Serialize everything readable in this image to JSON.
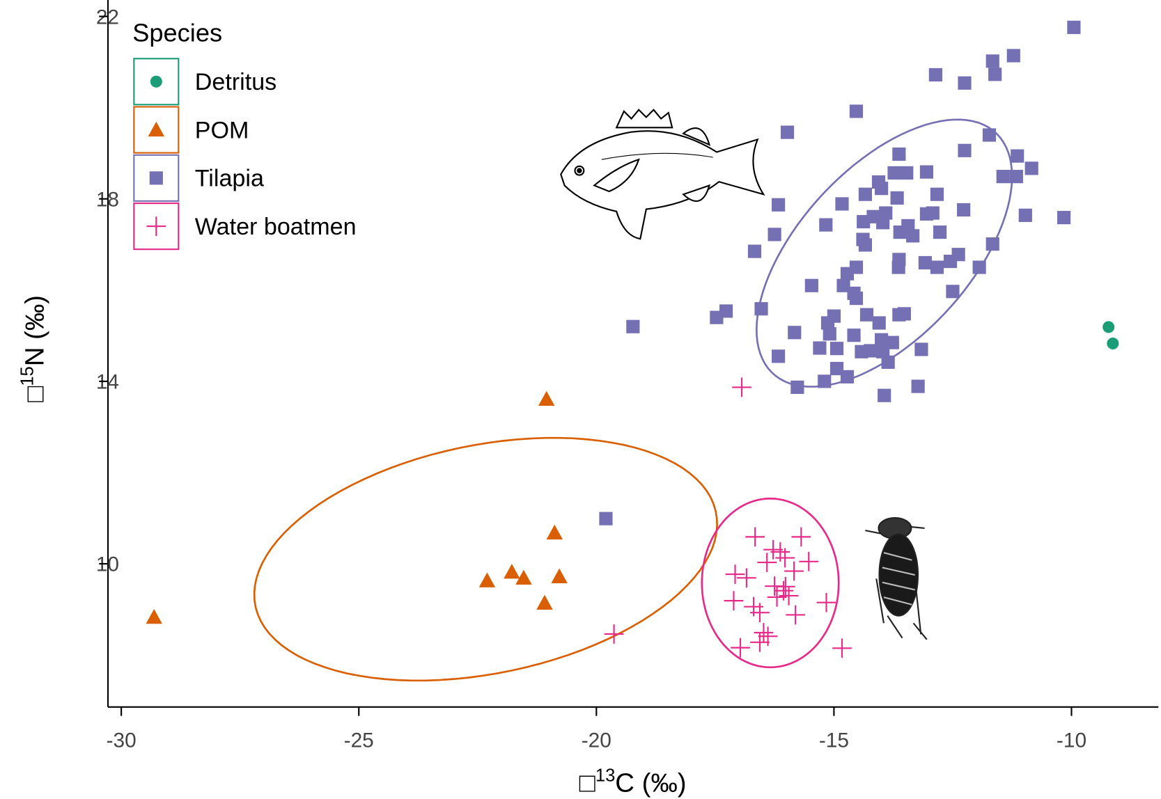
{
  "chart_data": {
    "type": "scatter",
    "xlabel": [
      "□",
      "13",
      "C (‰)"
    ],
    "ylabel": [
      "□",
      "15",
      "N (‰)"
    ],
    "xlim": [
      -30.28,
      -8.17
    ],
    "ylim": [
      6.86,
      22.36
    ],
    "xticks": [
      -30,
      -25,
      -20,
      -15,
      -10
    ],
    "yticks": [
      10,
      14,
      18,
      22
    ],
    "legend_title": "Species",
    "legend": "upper left",
    "series": [
      {
        "name": "Detritus",
        "color": "#1b9e77",
        "marker": "circle",
        "x": [
          -9.22,
          -9.13
        ],
        "y": [
          15.19,
          14.83
        ]
      },
      {
        "name": "POM",
        "color": "#d95f02",
        "marker": "triangle",
        "x": [
          -29.31,
          -21.05,
          -20.88,
          -20.78,
          -22.3,
          -21.78,
          -21.53,
          -21.09
        ],
        "y": [
          8.83,
          13.61,
          10.68,
          9.72,
          9.63,
          9.82,
          9.69,
          9.14
        ],
        "ellipse": {
          "center": [
            -22.33,
            10.1
          ],
          "axis_a": [
            4.84,
            1.06
          ],
          "axis_b": [
            -0.55,
            2.44
          ]
        }
      },
      {
        "name": "Tilapia",
        "color": "#7570b3",
        "marker": "square",
        "x": [
          -9.95,
          -11.22,
          -11.66,
          -11.61,
          -12.86,
          -12.25,
          -14.53,
          -15.98,
          -11.73,
          -12.25,
          -11.14,
          -13.63,
          -10.84,
          -11.44,
          -11.16,
          -13.05,
          -14.06,
          -13.73,
          -13.47,
          -14.0,
          -14.34,
          -13.67,
          -12.83,
          -16.17,
          -14.83,
          -12.27,
          -13.91,
          -14.17,
          -13.05,
          -12.92,
          -10.97,
          -10.16,
          -15.17,
          -14.38,
          -13.97,
          -13.44,
          -13.61,
          -13.34,
          -12.77,
          -16.25,
          -14.39,
          -14.34,
          -11.66,
          -16.67,
          -13.63,
          -12.38,
          -12.55,
          -13.08,
          -12.83,
          -14.53,
          -14.72,
          -13.64,
          -11.94,
          -15.47,
          -14.8,
          -14.58,
          -12.5,
          -14.53,
          -17.27,
          -17.47,
          -16.53,
          -19.23,
          -15.0,
          -13.63,
          -13.52,
          -15.13,
          -14.31,
          -14.05,
          -15.83,
          -14.58,
          -15.09,
          -14.0,
          -13.77,
          -15.3,
          -14.94,
          -14.42,
          -14.23,
          -13.97,
          -13.16,
          -16.17,
          -13.86,
          -14.94,
          -14.72,
          -15.2,
          -15.77,
          -13.23,
          -13.94,
          -19.8
        ],
        "y": [
          21.76,
          21.14,
          21.02,
          20.73,
          20.72,
          20.54,
          19.92,
          19.46,
          19.4,
          19.06,
          18.94,
          18.98,
          18.67,
          18.49,
          18.49,
          18.59,
          18.37,
          18.57,
          18.57,
          18.23,
          18.1,
          18.02,
          18.1,
          17.87,
          17.89,
          17.76,
          17.69,
          17.61,
          17.67,
          17.69,
          17.64,
          17.59,
          17.43,
          17.5,
          17.48,
          17.41,
          17.27,
          17.19,
          17.27,
          17.22,
          17.11,
          16.99,
          17.01,
          16.85,
          16.67,
          16.78,
          16.63,
          16.6,
          16.5,
          16.5,
          16.36,
          16.5,
          16.5,
          16.1,
          16.1,
          15.93,
          15.97,
          15.82,
          15.54,
          15.4,
          15.59,
          15.2,
          15.43,
          15.46,
          15.48,
          15.28,
          15.46,
          15.28,
          15.07,
          15.01,
          15.04,
          14.91,
          14.85,
          14.73,
          14.72,
          14.65,
          14.67,
          14.65,
          14.7,
          14.55,
          14.42,
          14.28,
          14.1,
          14.0,
          13.87,
          13.89,
          13.69,
          10.99
        ],
        "ellipse": {
          "center": [
            -13.94,
            16.81
          ],
          "axis_a": [
            2.19,
            2.76
          ],
          "axis_b": [
            1.56,
            -0.98
          ]
        }
      },
      {
        "name": "Water boatmen",
        "color": "#e7298a",
        "marker": "plus",
        "x": [
          -16.94,
          -19.63,
          -14.83,
          -16.66,
          -15.69,
          -16.28,
          -16.13,
          -16.41,
          -16.03,
          -15.53,
          -15.84,
          -17.08,
          -16.84,
          -16.25,
          -16.02,
          -17.11,
          -16.69,
          -16.56,
          -16.06,
          -16.2,
          -15.95,
          -15.81,
          -15.16,
          -16.48,
          -16.39,
          -16.97,
          -16.56
        ],
        "y": [
          13.87,
          8.46,
          8.15,
          10.59,
          10.59,
          10.31,
          10.26,
          10.03,
          10.13,
          10.05,
          9.84,
          9.77,
          9.69,
          9.51,
          9.5,
          9.19,
          9.06,
          8.93,
          9.41,
          9.27,
          9.3,
          8.88,
          9.15,
          8.49,
          8.41,
          8.16,
          8.28
        ],
        "ellipse": {
          "center": [
            -16.34,
            9.58
          ],
          "axis_a": [
            1.44,
            0
          ],
          "axis_b": [
            0,
            1.85
          ]
        }
      }
    ]
  }
}
